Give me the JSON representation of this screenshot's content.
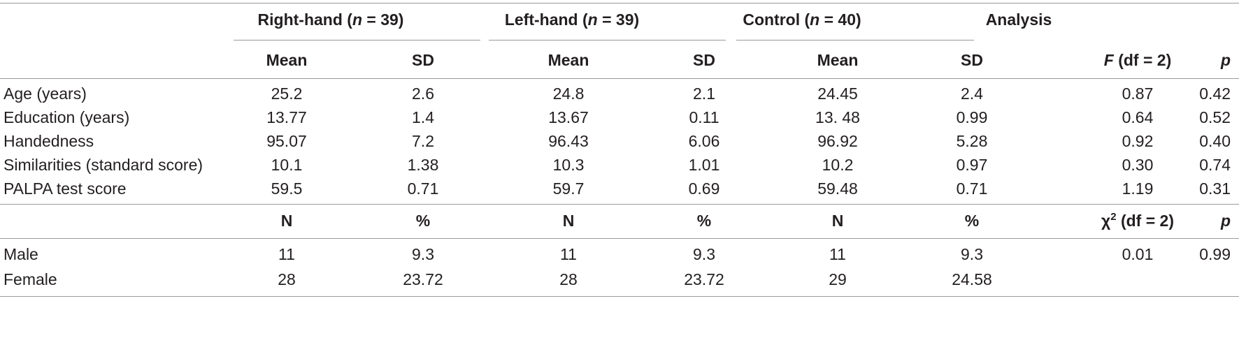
{
  "groups": [
    {
      "name": "Right-hand",
      "n": "39"
    },
    {
      "name": "Left-hand",
      "n": "39"
    },
    {
      "name": "Control",
      "n": "40"
    }
  ],
  "analysis_label": "Analysis",
  "sub_headers": {
    "mean": "Mean",
    "sd": "SD",
    "f_symbol": "F",
    "f_rest": "(df = 2)",
    "p": "p"
  },
  "rows": [
    {
      "label": "Age (years)",
      "vals": [
        "25.2",
        "2.6",
        "24.8",
        "2.1",
        "24.45",
        "2.4",
        "0.87",
        "0.42"
      ]
    },
    {
      "label": "Education (years)",
      "vals": [
        "13.77",
        "1.4",
        "13.67",
        "0.11",
        "13. 48",
        "0.99",
        "0.64",
        "0.52"
      ]
    },
    {
      "label": "Handedness",
      "vals": [
        "95.07",
        "7.2",
        "96.43",
        "6.06",
        "96.92",
        "5.28",
        "0.92",
        "0.40"
      ]
    },
    {
      "label": "Similarities (standard score)",
      "vals": [
        "10.1",
        "1.38",
        "10.3",
        "1.01",
        "10.2",
        "0.97",
        "0.30",
        "0.74"
      ]
    },
    {
      "label": "PALPA test score",
      "vals": [
        "59.5",
        "0.71",
        "59.7",
        "0.69",
        "59.48",
        "0.71",
        "1.19",
        "0.31"
      ]
    }
  ],
  "count_headers": {
    "n": "N",
    "pct": "%",
    "chi_symbol": "χ",
    "chi_sup": "2",
    "chi_rest": "(df = 2)",
    "p": "p"
  },
  "count_rows": [
    {
      "label": "Male",
      "vals": [
        "11",
        "9.3",
        "11",
        "9.3",
        "11",
        "9.3",
        "0.01",
        "0.99"
      ]
    },
    {
      "label": "Female",
      "vals": [
        "28",
        "23.72",
        "28",
        "23.72",
        "29",
        "24.58",
        "",
        ""
      ]
    }
  ]
}
